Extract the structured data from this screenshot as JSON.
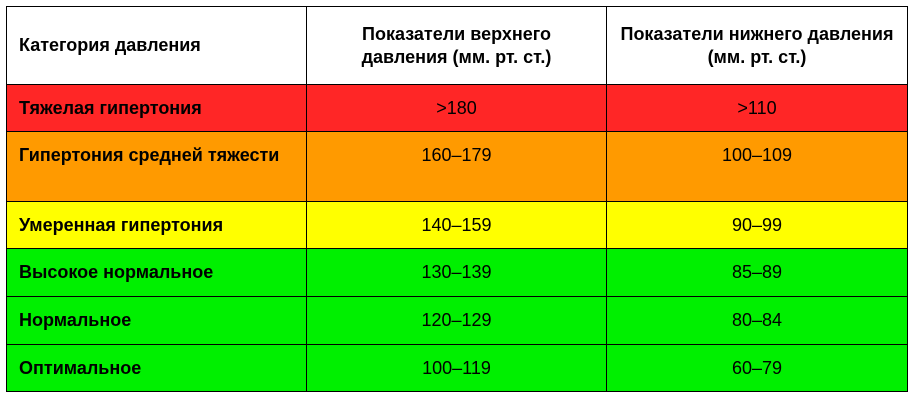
{
  "table": {
    "headers": {
      "category": "Категория давления",
      "systolic": "Показатели верхнего давления (мм. рт. ст.)",
      "diastolic": "Показатели нижнего давления (мм. рт. ст.)"
    },
    "rows": [
      {
        "category": "Тяжелая гипертония",
        "systolic": ">180",
        "diastolic": ">110",
        "color": "#ff2626"
      },
      {
        "category": "Гипертония средней тяжести",
        "systolic": "160–179",
        "diastolic": "100–109",
        "color": "#ff9a00"
      },
      {
        "category": "Умеренная гипертония",
        "systolic": "140–159",
        "diastolic": "90–99",
        "color": "#ffff00"
      },
      {
        "category": "Высокое нормальное",
        "systolic": "130–139",
        "diastolic": "85–89",
        "color": "#00f000"
      },
      {
        "category": "Нормальное",
        "systolic": "120–129",
        "diastolic": "80–84",
        "color": "#00f000"
      },
      {
        "category": "Оптимальное",
        "systolic": "100–119",
        "diastolic": "60–79",
        "color": "#00f000"
      }
    ]
  }
}
